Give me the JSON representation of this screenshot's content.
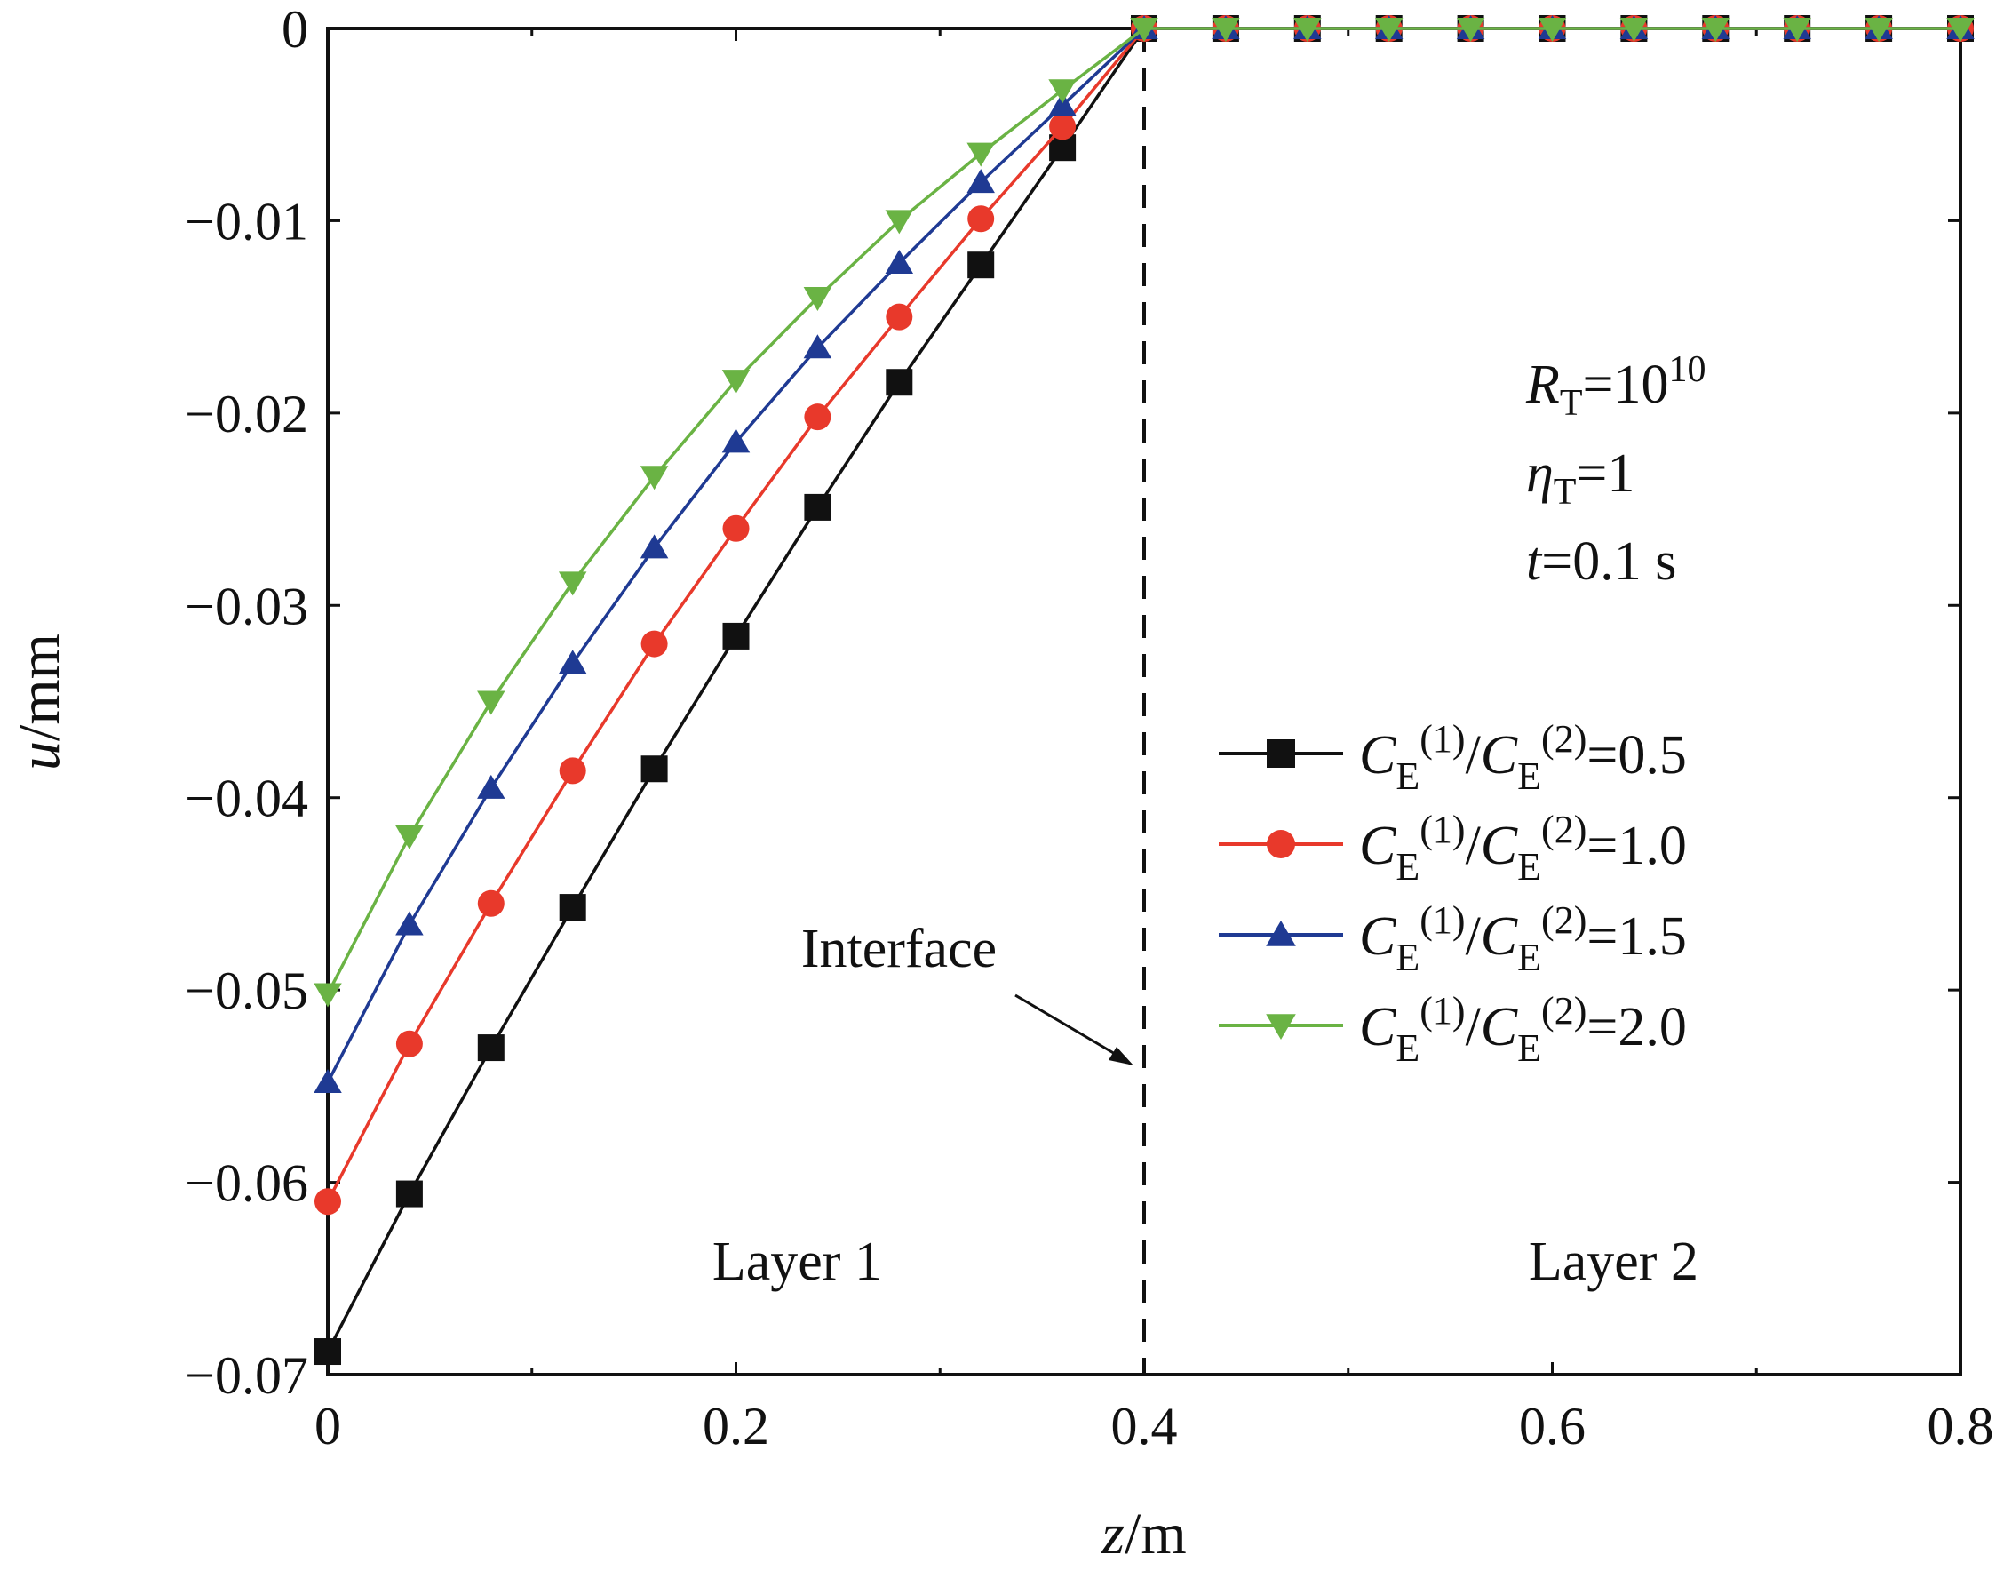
{
  "chart_data": {
    "type": "line",
    "title": "",
    "xlabel": {
      "italic": "z",
      "rest": "/m"
    },
    "ylabel": {
      "italic": "u",
      "rest": "/mm"
    },
    "xlim": [
      0,
      0.8
    ],
    "ylim": [
      -0.07,
      0
    ],
    "x_ticks": [
      0,
      0.2,
      0.4,
      0.6,
      0.8
    ],
    "x_tick_labels": [
      "0",
      "0.2",
      "0.4",
      "0.6",
      "0.8"
    ],
    "y_ticks": [
      0,
      -0.01,
      -0.02,
      -0.03,
      -0.04,
      -0.05,
      -0.06,
      -0.07
    ],
    "y_tick_labels": [
      "0",
      "−0.01",
      "−0.02",
      "−0.03",
      "−0.04",
      "−0.05",
      "−0.06",
      "−0.07"
    ],
    "grid": false,
    "legend_position": "center-right",
    "interface": {
      "x": 0.4,
      "label": "Interface",
      "style": "dashed"
    },
    "regions": [
      {
        "label": "Layer 1",
        "x_center": 0.23
      },
      {
        "label": "Layer 2",
        "x_center": 0.63
      }
    ],
    "params": {
      "line1": {
        "italic": "R",
        "sub": "T",
        "text": "=10",
        "sup": "10"
      },
      "line2": {
        "italic": "η",
        "sub": "T",
        "text": "=1"
      },
      "line3": {
        "italic": "t",
        "text": "=0.1 s"
      }
    },
    "x": [
      0,
      0.04,
      0.08,
      0.12,
      0.16,
      0.2,
      0.24,
      0.28,
      0.32,
      0.36,
      0.4,
      0.44,
      0.48,
      0.52,
      0.56,
      0.6,
      0.64,
      0.68,
      0.72,
      0.76,
      0.8
    ],
    "series": [
      {
        "name": "CE(1)/CE(2)=0.5",
        "legend": {
          "c1": "C",
          "s1": "E",
          "p1": "(1)",
          "slash": "/",
          "c2": "C",
          "s2": "E",
          "p2": "(2)",
          "value": "=0.5"
        },
        "color": "#111111",
        "marker": "square",
        "values": [
          -0.0688,
          -0.0606,
          -0.053,
          -0.0457,
          -0.0385,
          -0.0316,
          -0.0249,
          -0.0184,
          -0.0123,
          -0.0062,
          0,
          0,
          0,
          0,
          0,
          0,
          0,
          0,
          0,
          0,
          0
        ]
      },
      {
        "name": "CE(1)/CE(2)=1.0",
        "legend": {
          "c1": "C",
          "s1": "E",
          "p1": "(1)",
          "slash": "/",
          "c2": "C",
          "s2": "E",
          "p2": "(2)",
          "value": "=1.0"
        },
        "color": "#e8392b",
        "marker": "circle",
        "values": [
          -0.061,
          -0.0528,
          -0.0455,
          -0.0386,
          -0.032,
          -0.026,
          -0.0202,
          -0.015,
          -0.0099,
          -0.0051,
          0,
          0,
          0,
          0,
          0,
          0,
          0,
          0,
          0,
          0,
          0
        ]
      },
      {
        "name": "CE(1)/CE(2)=1.5",
        "legend": {
          "c1": "C",
          "s1": "E",
          "p1": "(1)",
          "slash": "/",
          "c2": "C",
          "s2": "E",
          "p2": "(2)",
          "value": "=1.5"
        },
        "color": "#1f3a93",
        "marker": "triangle-up",
        "values": [
          -0.0548,
          -0.0466,
          -0.0395,
          -0.033,
          -0.027,
          -0.0215,
          -0.0166,
          -0.0122,
          -0.008,
          -0.004,
          0,
          0,
          0,
          0,
          0,
          0,
          0,
          0,
          0,
          0,
          0
        ]
      },
      {
        "name": "CE(1)/CE(2)=2.0",
        "legend": {
          "c1": "C",
          "s1": "E",
          "p1": "(1)",
          "slash": "/",
          "c2": "C",
          "s2": "E",
          "p2": "(2)",
          "value": "=2.0"
        },
        "color": "#6ab344",
        "marker": "triangle-down",
        "values": [
          -0.0502,
          -0.042,
          -0.035,
          -0.0288,
          -0.0233,
          -0.0183,
          -0.014,
          -0.01,
          -0.0065,
          -0.0032,
          0,
          0,
          0,
          0,
          0,
          0,
          0,
          0,
          0,
          0,
          0
        ]
      }
    ]
  }
}
